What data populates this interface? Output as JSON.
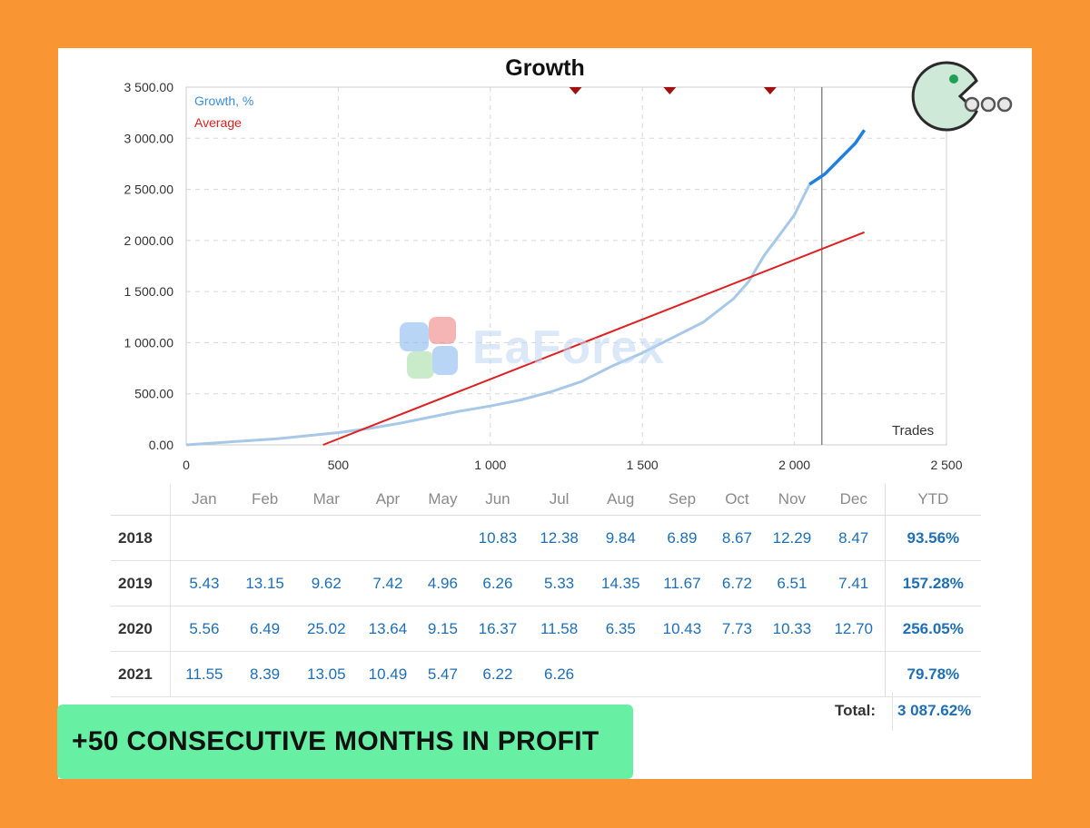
{
  "chart_data": {
    "type": "line",
    "title": "Growth",
    "xlabel": "Trades",
    "ylabel": "",
    "xlim": [
      0,
      2500
    ],
    "ylim": [
      0,
      3500
    ],
    "x_ticks": [
      0,
      500,
      1000,
      1500,
      2000,
      2500
    ],
    "x_tick_labels": [
      "0",
      "500",
      "1 000",
      "1 500",
      "2 000",
      "2 500"
    ],
    "y_ticks": [
      0,
      500,
      1000,
      1500,
      2000,
      2500,
      3000,
      3500
    ],
    "y_tick_labels": [
      "0.00",
      "500.00",
      "1 000.00",
      "1 500.00",
      "2 000.00",
      "2 500.00",
      "3 000.00",
      "3 500.00"
    ],
    "grid": true,
    "legend": "top-left",
    "series": [
      {
        "name": "Growth, %",
        "color": "#a8c8e8",
        "highlight_color": "#1e7fe0",
        "x": [
          0,
          100,
          200,
          300,
          400,
          500,
          600,
          700,
          800,
          900,
          1000,
          1100,
          1200,
          1300,
          1400,
          1500,
          1600,
          1700,
          1800,
          1850,
          1900,
          1950,
          2000,
          2050,
          2100,
          2150,
          2200,
          2230
        ],
        "y": [
          0,
          20,
          40,
          60,
          90,
          120,
          160,
          210,
          270,
          330,
          380,
          440,
          520,
          620,
          770,
          900,
          1050,
          1200,
          1430,
          1600,
          1850,
          2050,
          2250,
          2550,
          2650,
          2800,
          2950,
          3080
        ]
      },
      {
        "name": "Average",
        "color": "#e02020",
        "x": [
          450,
          2230
        ],
        "y": [
          0,
          2080
        ]
      }
    ],
    "current_trades": 2090,
    "markers_x": [
      1280,
      1590,
      1920
    ],
    "marker_color": "#a01010"
  },
  "watermark": "EaForex",
  "table": {
    "headers": [
      "Jan",
      "Feb",
      "Mar",
      "Apr",
      "May",
      "Jun",
      "Jul",
      "Aug",
      "Sep",
      "Oct",
      "Nov",
      "Dec",
      "YTD"
    ],
    "rows": [
      {
        "year": "2018",
        "values": [
          "",
          "",
          "",
          "",
          "",
          "10.83",
          "12.38",
          "9.84",
          "6.89",
          "8.67",
          "12.29",
          "8.47"
        ],
        "ytd": "93.56%"
      },
      {
        "year": "2019",
        "values": [
          "5.43",
          "13.15",
          "9.62",
          "7.42",
          "4.96",
          "6.26",
          "5.33",
          "14.35",
          "11.67",
          "6.72",
          "6.51",
          "7.41"
        ],
        "ytd": "157.28%"
      },
      {
        "year": "2020",
        "values": [
          "5.56",
          "6.49",
          "25.02",
          "13.64",
          "9.15",
          "16.37",
          "11.58",
          "6.35",
          "10.43",
          "7.73",
          "10.33",
          "12.70"
        ],
        "ytd": "256.05%"
      },
      {
        "year": "2021",
        "values": [
          "11.55",
          "8.39",
          "13.05",
          "10.49",
          "5.47",
          "6.22",
          "6.26",
          "",
          "",
          "",
          "",
          ""
        ],
        "ytd": "79.78%"
      }
    ],
    "total_label": "Total:",
    "total_value": "3 087.62%"
  },
  "banner": {
    "text": "+50 CONSECUTIVE MONTHS IN PROFIT"
  },
  "logo": {
    "name": "pacman-icon"
  }
}
